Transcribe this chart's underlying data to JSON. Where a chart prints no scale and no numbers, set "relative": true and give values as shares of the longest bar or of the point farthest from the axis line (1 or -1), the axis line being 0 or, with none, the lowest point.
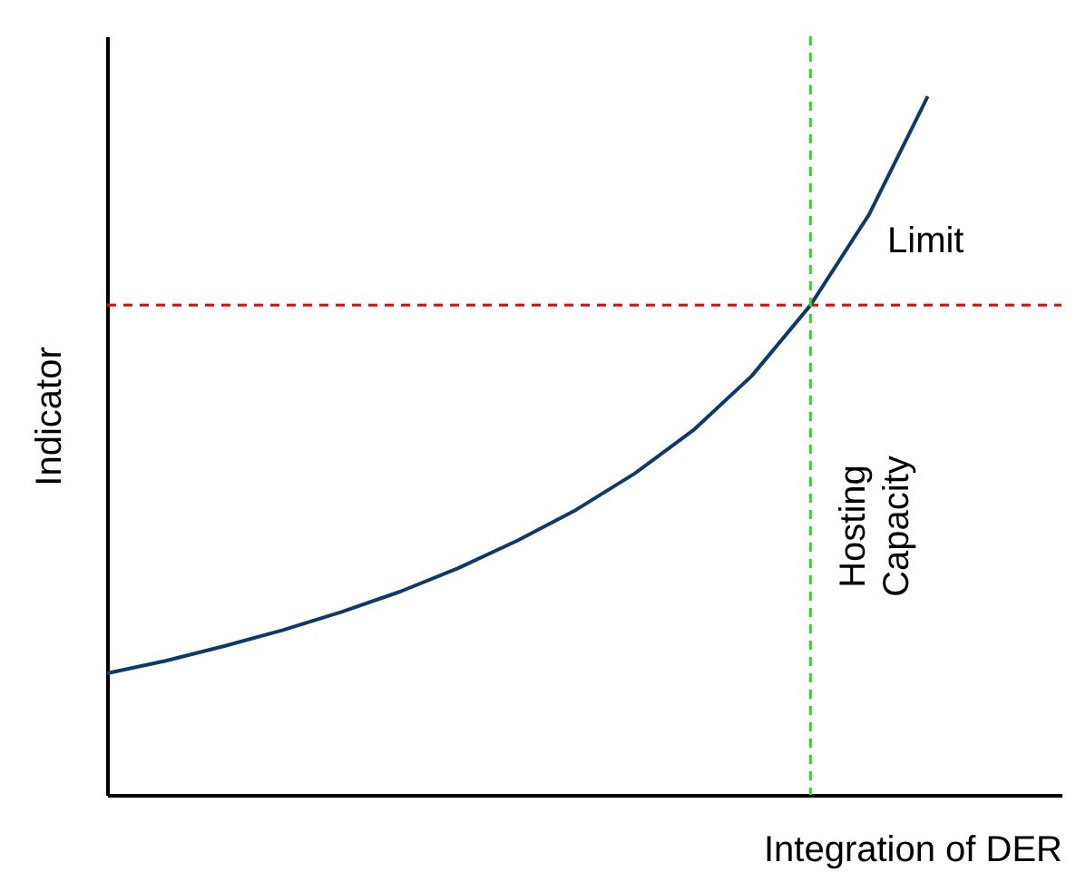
{
  "chart_data": {
    "type": "line",
    "relative": true,
    "xlabel": "Integration of DER",
    "ylabel": "Indicator",
    "categories": [
      null,
      null,
      null,
      null,
      null,
      null,
      null,
      null,
      null,
      null,
      null,
      null,
      null,
      null,
      null
    ],
    "series": [
      {
        "color": "#0b3a6e",
        "values": [
          0.174,
          0.192,
          0.213,
          0.236,
          0.262,
          0.291,
          0.325,
          0.364,
          0.408,
          0.46,
          0.522,
          0.6,
          0.701,
          0.831,
          1.0
        ]
      }
    ],
    "ref_lines": [
      {
        "axis": "y",
        "value": 0.701,
        "label": "Limit",
        "color": "#ff0000",
        "line_style": "dashed"
      }
    ],
    "annotations": [
      "Hosting Capacity"
    ],
    "grid": false,
    "legend": false,
    "tick_labels": false,
    "marker": "none",
    "line_style": "solid"
  }
}
